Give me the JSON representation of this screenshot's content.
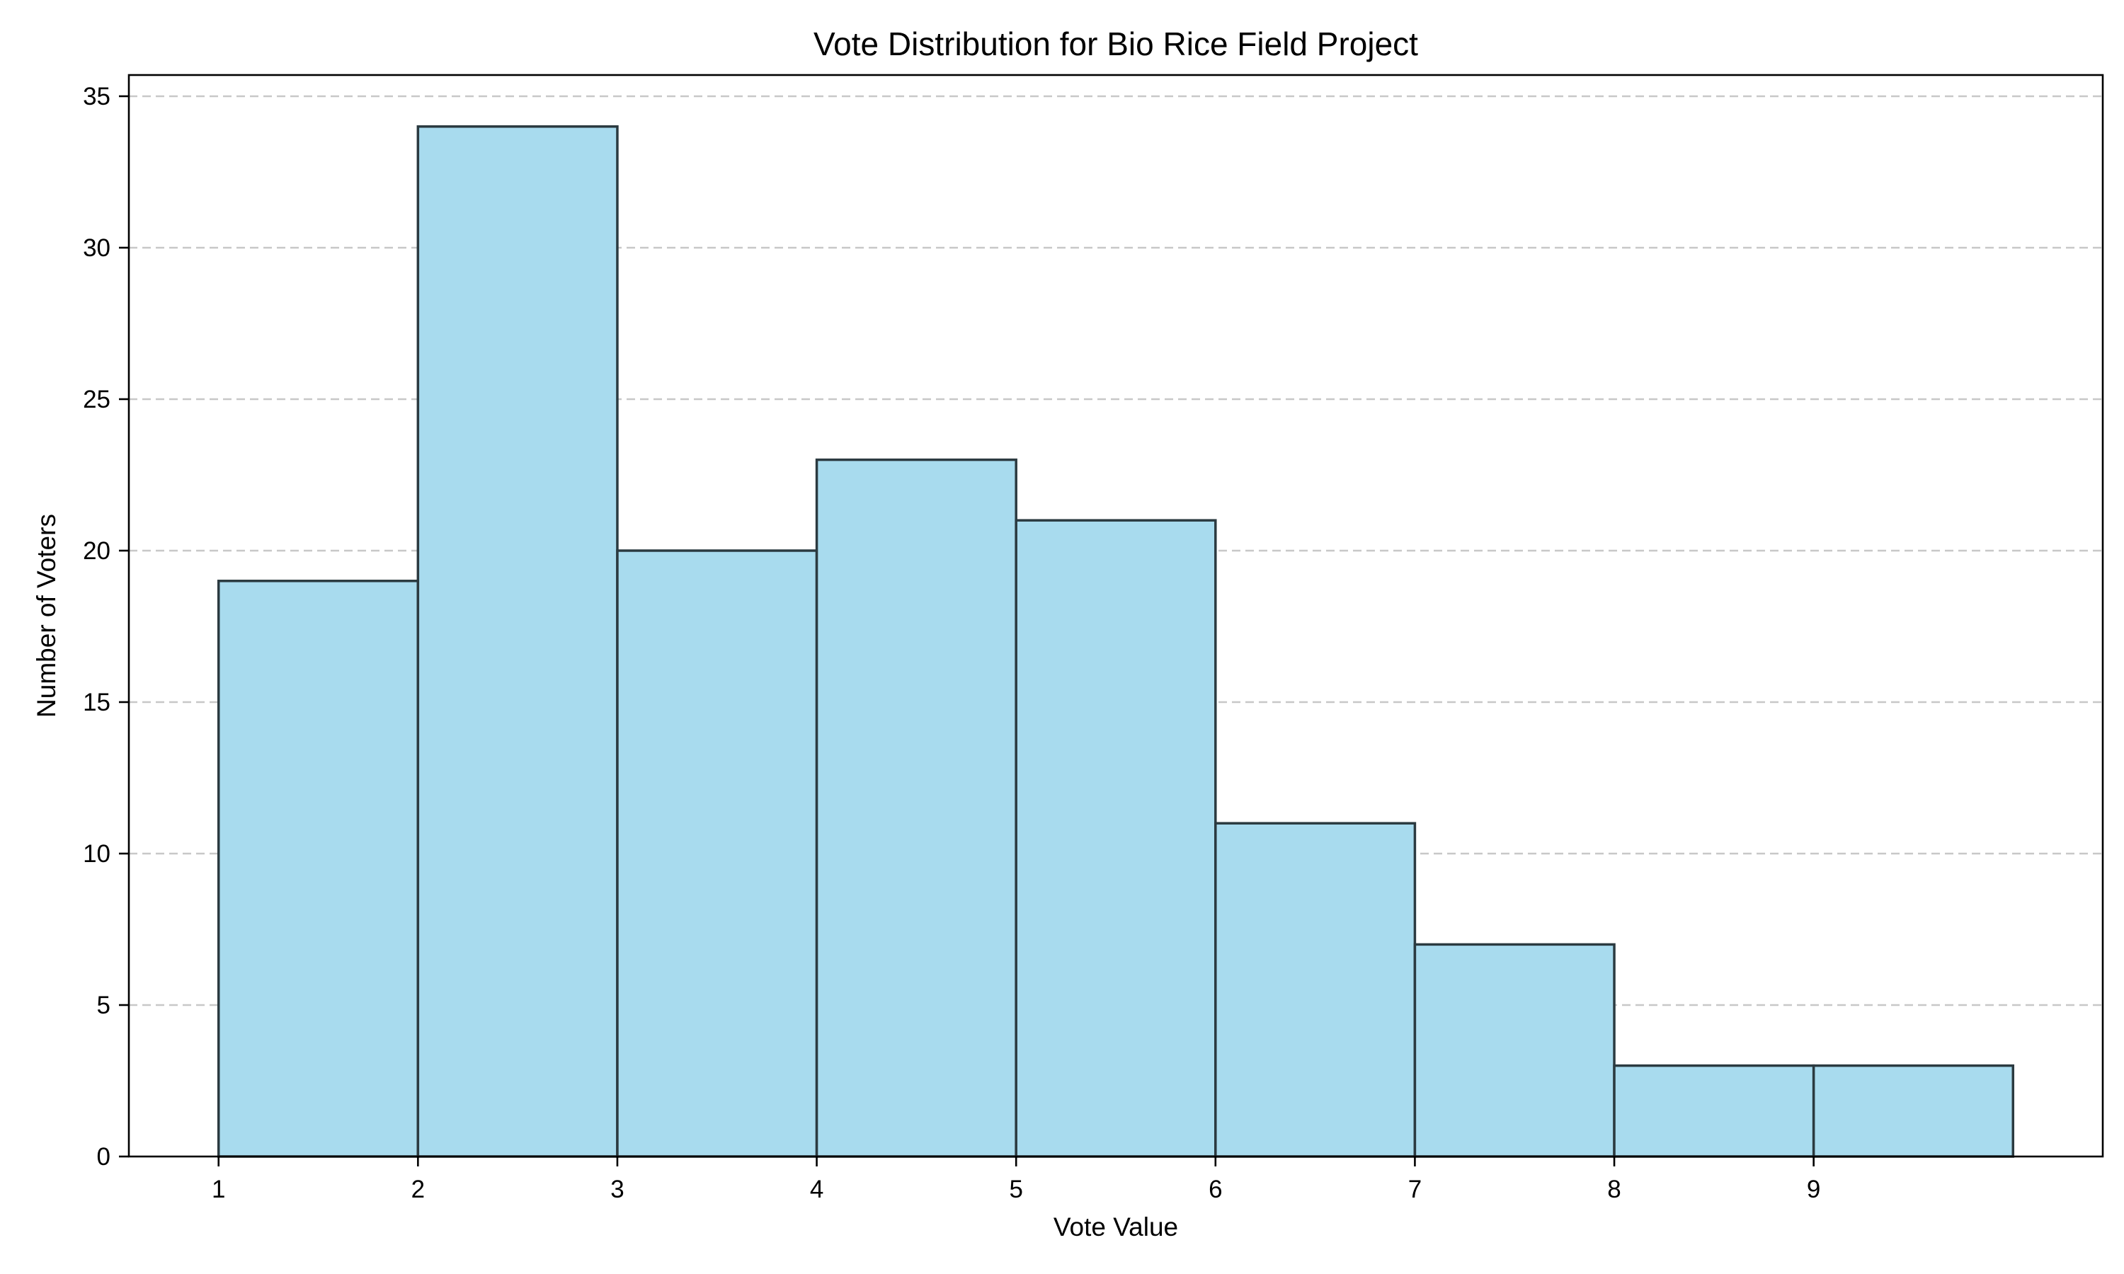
{
  "chart_data": {
    "type": "bar",
    "title": "Vote Distribution for Bio Rice Field Project",
    "xlabel": "Vote Value",
    "ylabel": "Number of Voters",
    "bins": [
      {
        "start": 1,
        "end": 2,
        "count": 19
      },
      {
        "start": 2,
        "end": 3,
        "count": 34
      },
      {
        "start": 3,
        "end": 4,
        "count": 20
      },
      {
        "start": 4,
        "end": 5,
        "count": 23
      },
      {
        "start": 5,
        "end": 6,
        "count": 21
      },
      {
        "start": 6,
        "end": 7,
        "count": 11
      },
      {
        "start": 7,
        "end": 8,
        "count": 7
      },
      {
        "start": 8,
        "end": 9,
        "count": 3
      },
      {
        "start": 9,
        "end": 10,
        "count": 3
      }
    ],
    "x_ticks": [
      "1",
      "2",
      "3",
      "4",
      "5",
      "6",
      "7",
      "8",
      "9"
    ],
    "y_ticks": [
      "0",
      "5",
      "10",
      "15",
      "20",
      "25",
      "30",
      "35"
    ],
    "xlim": [
      0.55,
      10.45
    ],
    "ylim": [
      0,
      35.7
    ],
    "grid": "y-axis dashed",
    "bar_color": "#a8dbee",
    "edge_color": "#2b3a40",
    "legend": "none"
  }
}
